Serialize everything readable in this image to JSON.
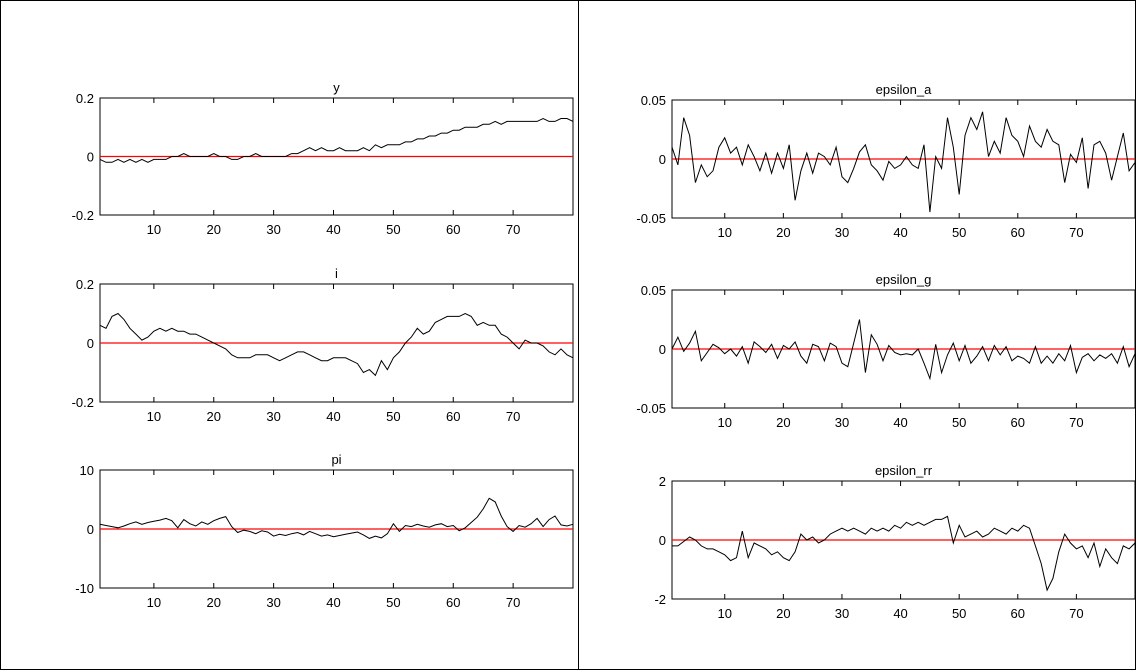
{
  "colors": {
    "series": "#000000",
    "zero_line": "#ff0000",
    "axes": "#000000"
  },
  "chart_data": [
    {
      "type": "line",
      "title": "y",
      "xlabel": "",
      "ylabel": "",
      "xlim": [
        1,
        80
      ],
      "ylim": [
        -0.2,
        0.2
      ],
      "xticks": [
        10,
        20,
        30,
        40,
        50,
        60,
        70
      ],
      "yticks": [
        {
          "v": -0.2,
          "label": "-0.2"
        },
        {
          "v": 0,
          "label": "0"
        },
        {
          "v": 0.2,
          "label": "0.2"
        }
      ],
      "reference_line": 0,
      "values": [
        -0.01,
        -0.02,
        -0.02,
        -0.01,
        -0.02,
        -0.01,
        -0.02,
        -0.01,
        -0.02,
        -0.01,
        -0.01,
        -0.01,
        0,
        0,
        0.01,
        0,
        0,
        0,
        0,
        0.01,
        0,
        0,
        -0.01,
        -0.01,
        0,
        0,
        0.01,
        0,
        0,
        0,
        0,
        0,
        0.01,
        0.01,
        0.02,
        0.03,
        0.02,
        0.03,
        0.02,
        0.02,
        0.03,
        0.02,
        0.02,
        0.02,
        0.03,
        0.02,
        0.04,
        0.03,
        0.04,
        0.04,
        0.04,
        0.05,
        0.05,
        0.06,
        0.06,
        0.07,
        0.07,
        0.08,
        0.08,
        0.09,
        0.09,
        0.1,
        0.1,
        0.1,
        0.11,
        0.11,
        0.12,
        0.11,
        0.12,
        0.12,
        0.12,
        0.12,
        0.12,
        0.12,
        0.13,
        0.12,
        0.12,
        0.13,
        0.13,
        0.12
      ]
    },
    {
      "type": "line",
      "title": "i",
      "xlabel": "",
      "ylabel": "",
      "xlim": [
        1,
        80
      ],
      "ylim": [
        -0.2,
        0.2
      ],
      "xticks": [
        10,
        20,
        30,
        40,
        50,
        60,
        70
      ],
      "yticks": [
        {
          "v": -0.2,
          "label": "-0.2"
        },
        {
          "v": 0,
          "label": "0"
        },
        {
          "v": 0.2,
          "label": "0.2"
        }
      ],
      "reference_line": 0,
      "values": [
        0.06,
        0.05,
        0.09,
        0.1,
        0.08,
        0.05,
        0.03,
        0.01,
        0.02,
        0.04,
        0.05,
        0.04,
        0.05,
        0.04,
        0.04,
        0.03,
        0.03,
        0.02,
        0.01,
        0,
        -0.01,
        -0.02,
        -0.04,
        -0.05,
        -0.05,
        -0.05,
        -0.04,
        -0.04,
        -0.04,
        -0.05,
        -0.06,
        -0.05,
        -0.04,
        -0.03,
        -0.03,
        -0.04,
        -0.05,
        -0.06,
        -0.06,
        -0.05,
        -0.05,
        -0.05,
        -0.06,
        -0.07,
        -0.1,
        -0.09,
        -0.11,
        -0.06,
        -0.09,
        -0.05,
        -0.03,
        0,
        0.02,
        0.05,
        0.03,
        0.04,
        0.07,
        0.08,
        0.09,
        0.09,
        0.09,
        0.1,
        0.09,
        0.06,
        0.07,
        0.06,
        0.06,
        0.03,
        0.02,
        0,
        -0.02,
        0.01,
        0,
        0,
        -0.01,
        -0.03,
        -0.04,
        -0.02,
        -0.04,
        -0.05
      ]
    },
    {
      "type": "line",
      "title": "pi",
      "xlabel": "",
      "ylabel": "",
      "xlim": [
        1,
        80
      ],
      "ylim": [
        -10,
        10
      ],
      "xticks": [
        10,
        20,
        30,
        40,
        50,
        60,
        70
      ],
      "yticks": [
        {
          "v": -10,
          "label": "-10"
        },
        {
          "v": 0,
          "label": "0"
        },
        {
          "v": 10,
          "label": "10"
        }
      ],
      "reference_line": 0,
      "values": [
        0.8,
        0.6,
        0.4,
        0.2,
        0.5,
        0.9,
        1.2,
        0.8,
        1.1,
        1.3,
        1.5,
        1.8,
        1.4,
        0.2,
        1.6,
        0.9,
        0.5,
        1.2,
        0.8,
        1.4,
        1.8,
        2.1,
        0.4,
        -0.6,
        -0.2,
        -0.4,
        -0.8,
        -0.3,
        -0.5,
        -1.2,
        -0.9,
        -1.1,
        -0.8,
        -0.6,
        -1.0,
        -0.4,
        -0.8,
        -1.2,
        -1.0,
        -1.3,
        -1.1,
        -0.9,
        -0.7,
        -0.5,
        -1.0,
        -1.6,
        -1.2,
        -1.5,
        -0.8,
        0.9,
        -0.4,
        0.6,
        0.4,
        0.8,
        0.5,
        0.3,
        0.7,
        0.9,
        0.4,
        0.6,
        -0.3,
        0.2,
        1.1,
        2.0,
        3.4,
        5.2,
        4.6,
        2.2,
        0.4,
        -0.4,
        0.6,
        0.3,
        0.9,
        1.8,
        0.4,
        1.6,
        2.2,
        0.7,
        0.5,
        0.8
      ]
    },
    {
      "type": "line",
      "title": "epsilon_a",
      "xlabel": "",
      "ylabel": "",
      "xlim": [
        1,
        80
      ],
      "ylim": [
        -0.05,
        0.05
      ],
      "xticks": [
        10,
        20,
        30,
        40,
        50,
        60,
        70
      ],
      "yticks": [
        {
          "v": -0.05,
          "label": "-0.05"
        },
        {
          "v": 0,
          "label": "0"
        },
        {
          "v": 0.05,
          "label": "0.05"
        }
      ],
      "reference_line": 0,
      "values": [
        0.01,
        -0.005,
        0.035,
        0.02,
        -0.02,
        -0.005,
        -0.015,
        -0.01,
        0.01,
        0.018,
        0.005,
        0.01,
        -0.005,
        0.012,
        0.002,
        -0.01,
        0.005,
        -0.012,
        0.005,
        -0.008,
        0.012,
        -0.035,
        -0.01,
        0.005,
        -0.012,
        0.005,
        0.002,
        -0.005,
        0.01,
        -0.015,
        -0.02,
        -0.008,
        0.006,
        0.012,
        -0.005,
        -0.01,
        -0.018,
        -0.002,
        -0.008,
        -0.005,
        0.002,
        -0.005,
        -0.008,
        0.012,
        -0.045,
        0.002,
        -0.008,
        0.035,
        0.01,
        -0.03,
        0.02,
        0.035,
        0.025,
        0.04,
        0.002,
        0.015,
        0.005,
        0.035,
        0.02,
        0.015,
        0.002,
        0.028,
        0.015,
        0.01,
        0.025,
        0.015,
        0.012,
        -0.02,
        0.004,
        -0.003,
        0.018,
        -0.025,
        0.012,
        0.015,
        0.005,
        -0.018,
        0.002,
        0.022,
        -0.01,
        -0.003
      ]
    },
    {
      "type": "line",
      "title": "epsilon_g",
      "xlabel": "",
      "ylabel": "",
      "xlim": [
        1,
        80
      ],
      "ylim": [
        -0.05,
        0.05
      ],
      "xticks": [
        10,
        20,
        30,
        40,
        50,
        60,
        70
      ],
      "yticks": [
        {
          "v": -0.05,
          "label": "-0.05"
        },
        {
          "v": 0,
          "label": "0"
        },
        {
          "v": 0.05,
          "label": "0.05"
        }
      ],
      "reference_line": 0,
      "values": [
        0,
        0.01,
        -0.002,
        0.005,
        0.015,
        -0.01,
        -0.003,
        0.004,
        0.001,
        -0.004,
        0,
        -0.006,
        0.002,
        -0.012,
        0.006,
        0.002,
        -0.003,
        0.004,
        -0.008,
        0.003,
        0,
        0.006,
        -0.006,
        -0.012,
        0.004,
        0.002,
        -0.01,
        0.005,
        0.002,
        -0.012,
        -0.015,
        0.005,
        0.025,
        -0.02,
        0.012,
        0.004,
        -0.01,
        0.003,
        -0.003,
        -0.005,
        -0.004,
        -0.005,
        0,
        -0.012,
        -0.025,
        0.004,
        -0.02,
        -0.005,
        0.005,
        -0.01,
        0.003,
        -0.012,
        -0.006,
        0.002,
        -0.01,
        0.003,
        -0.005,
        0.002,
        -0.01,
        -0.006,
        -0.008,
        -0.012,
        0.002,
        -0.012,
        -0.006,
        -0.012,
        -0.004,
        -0.01,
        0.003,
        -0.02,
        -0.007,
        -0.004,
        -0.01,
        -0.005,
        -0.008,
        -0.004,
        -0.012,
        0.002,
        -0.015,
        -0.004
      ]
    },
    {
      "type": "line",
      "title": "epsilon_rr",
      "xlabel": "",
      "ylabel": "",
      "xlim": [
        1,
        80
      ],
      "ylim": [
        -2,
        2
      ],
      "xticks": [
        10,
        20,
        30,
        40,
        50,
        60,
        70
      ],
      "yticks": [
        {
          "v": -2,
          "label": "-2"
        },
        {
          "v": 0,
          "label": "0"
        },
        {
          "v": 2,
          "label": "2"
        }
      ],
      "reference_line": 0,
      "values": [
        -0.2,
        -0.2,
        -0.05,
        0.1,
        0,
        -0.2,
        -0.3,
        -0.3,
        -0.4,
        -0.5,
        -0.7,
        -0.6,
        0.3,
        -0.6,
        -0.1,
        -0.2,
        -0.3,
        -0.5,
        -0.4,
        -0.6,
        -0.7,
        -0.4,
        0.2,
        0,
        0.1,
        -0.1,
        0,
        0.2,
        0.3,
        0.4,
        0.3,
        0.4,
        0.3,
        0.2,
        0.4,
        0.3,
        0.4,
        0.3,
        0.5,
        0.4,
        0.6,
        0.5,
        0.6,
        0.5,
        0.6,
        0.7,
        0.7,
        0.8,
        -0.1,
        0.5,
        0.1,
        0.2,
        0.3,
        0.1,
        0.2,
        0.4,
        0.3,
        0.2,
        0.4,
        0.3,
        0.5,
        0.4,
        -0.2,
        -0.8,
        -1.7,
        -1.3,
        -0.4,
        0.2,
        -0.1,
        -0.3,
        -0.2,
        -0.6,
        -0.1,
        -0.9,
        -0.3,
        -0.6,
        -0.8,
        -0.2,
        -0.3,
        -0.1
      ]
    }
  ]
}
